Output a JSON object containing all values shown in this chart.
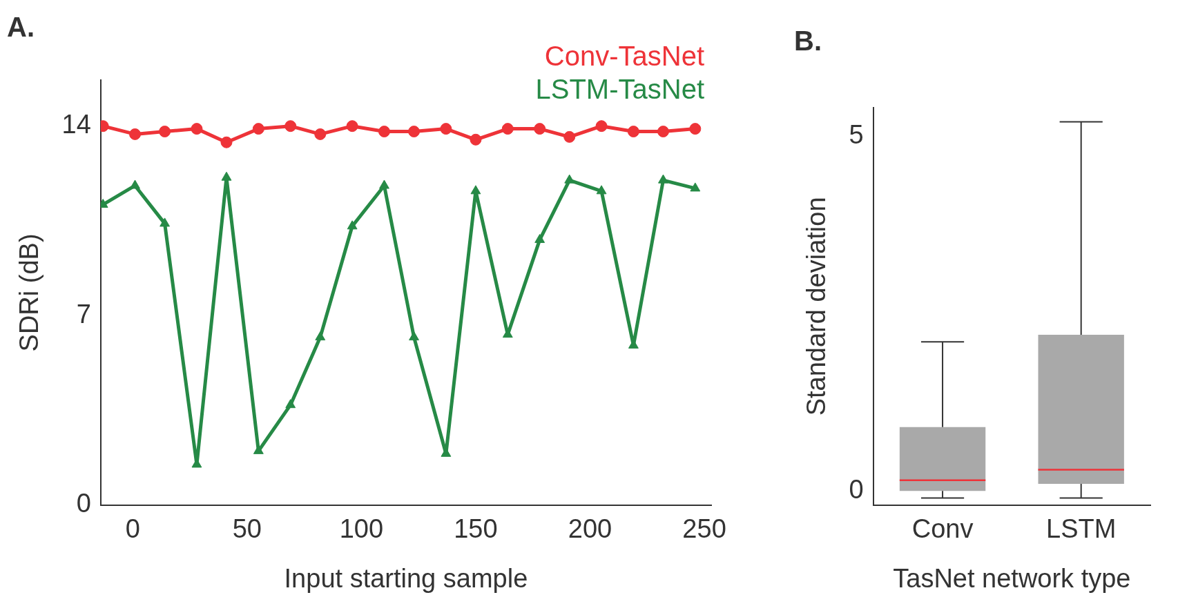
{
  "chart_data": [
    {
      "type": "line",
      "title": "A.",
      "xlabel": "Input starting sample",
      "ylabel": "SDRi (dB)",
      "xlim": [
        -14,
        253
      ],
      "xticks": [
        0,
        50,
        100,
        150,
        200,
        250
      ],
      "ylim": [
        0,
        15.7
      ],
      "yticks": [
        0,
        7,
        14
      ],
      "x": [
        -13,
        1,
        14,
        28,
        41,
        55,
        69,
        82,
        96,
        110,
        123,
        137,
        150,
        164,
        178,
        191,
        205,
        219,
        232,
        246
      ],
      "series": [
        {
          "name": "Conv-TasNet",
          "color": "#ee3338",
          "marker": "circle",
          "values": [
            14.0,
            13.7,
            13.8,
            13.9,
            13.4,
            13.9,
            14.0,
            13.7,
            14.0,
            13.8,
            13.8,
            13.9,
            13.5,
            13.9,
            13.9,
            13.6,
            14.0,
            13.8,
            13.8,
            13.9
          ]
        },
        {
          "name": "LSTM-TasNet",
          "color": "#268a46",
          "marker": "triangle",
          "values": [
            11.1,
            11.8,
            10.4,
            1.5,
            12.1,
            2.0,
            3.7,
            6.2,
            10.3,
            11.8,
            6.2,
            1.9,
            11.6,
            6.3,
            9.8,
            12.0,
            11.6,
            5.9,
            12.0,
            11.7
          ]
        }
      ],
      "legend": "top right",
      "grid": false,
      "line_style": "solid"
    },
    {
      "type": "box",
      "title": "B.",
      "xlabel": "TasNet network type",
      "ylabel": "Standard deviation",
      "categories": [
        "Conv",
        "LSTM"
      ],
      "ylim": [
        -0.2,
        5.4
      ],
      "yticks": [
        0,
        5
      ],
      "grid": false,
      "legend": false,
      "series": [
        {
          "color": "#a9a9a9",
          "boxes": [
            {
              "low": -0.1,
              "q1": 0.0,
              "median": 0.15,
              "q3": 0.9,
              "high": 2.1
            },
            {
              "low": -0.1,
              "q1": 0.1,
              "median": 0.3,
              "q3": 2.2,
              "high": 5.2
            }
          ]
        }
      ]
    }
  ]
}
